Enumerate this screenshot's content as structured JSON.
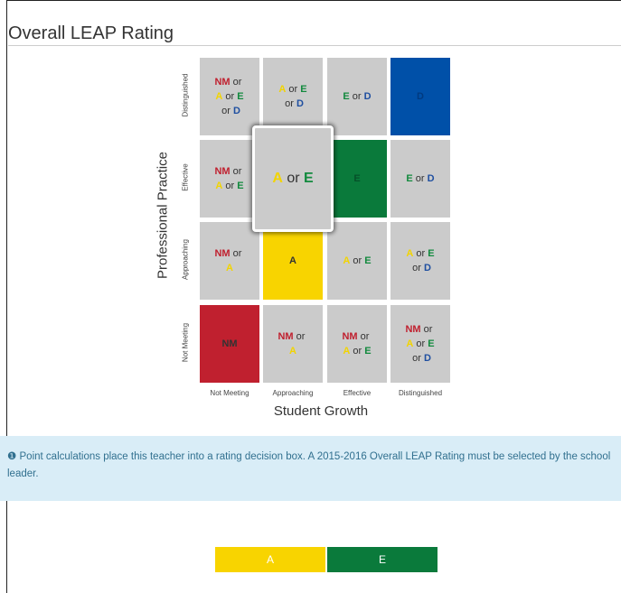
{
  "header": {
    "title": "Overall LEAP Rating"
  },
  "matrix": {
    "y_axis_label": "Professional Practice",
    "x_axis_label": "Student Growth",
    "row_labels": [
      "Distinguished",
      "Effective",
      "Approaching",
      "Not Meeting"
    ],
    "column_labels": [
      "Not Meeting",
      "Approaching",
      "Effective",
      "Distinguished"
    ],
    "letter_colors": {
      "NM": "#c0202f",
      "A": "#f2d400",
      "E": "#138a3e",
      "D": "#1f4fa0"
    },
    "fill_colors": {
      "NM": "#c0202f",
      "A": "#f8d400",
      "E": "#0a7a3b",
      "D": "#0050a8"
    },
    "fill_text_colors": {
      "NM": "#333333",
      "A": "#333333",
      "E": "#05512a",
      "D": "#003a80"
    },
    "highlighted_cell": [
      1,
      1
    ],
    "cells": [
      [
        {
          "lines": [
            [
              "NM",
              " or "
            ],
            [
              "A",
              " or ",
              "E"
            ],
            [
              " or ",
              "D"
            ]
          ]
        },
        {
          "lines": [
            [
              "A",
              " or ",
              "E"
            ],
            [
              " or ",
              "D"
            ]
          ]
        },
        {
          "lines": [
            [
              "E",
              " or ",
              "D"
            ]
          ]
        },
        {
          "fill": "D",
          "lines": [
            [
              "D"
            ]
          ]
        }
      ],
      [
        {
          "lines": [
            [
              "NM",
              " or "
            ],
            [
              "A",
              " or ",
              "E"
            ]
          ]
        },
        {
          "lines": [
            [
              "A",
              " or ",
              "E"
            ]
          ]
        },
        {
          "fill": "E",
          "lines": [
            [
              "E"
            ]
          ]
        },
        {
          "lines": [
            [
              "E",
              " or ",
              "D"
            ]
          ]
        }
      ],
      [
        {
          "lines": [
            [
              "NM",
              " or "
            ],
            [
              "A"
            ]
          ]
        },
        {
          "fill": "A",
          "lines": [
            [
              "A"
            ]
          ]
        },
        {
          "lines": [
            [
              "A",
              " or ",
              "E"
            ]
          ]
        },
        {
          "lines": [
            [
              "A",
              " or ",
              "E"
            ],
            [
              " or ",
              "D"
            ]
          ]
        }
      ],
      [
        {
          "fill": "NM",
          "lines": [
            [
              "NM"
            ]
          ]
        },
        {
          "lines": [
            [
              "NM",
              " or "
            ],
            [
              "A"
            ]
          ]
        },
        {
          "lines": [
            [
              "NM",
              " or "
            ],
            [
              "A",
              " or ",
              "E"
            ]
          ]
        },
        {
          "lines": [
            [
              "NM",
              " or "
            ],
            [
              "A",
              " or ",
              "E"
            ],
            [
              " or ",
              "D"
            ]
          ]
        }
      ]
    ]
  },
  "alert": {
    "icon": "❶",
    "text": "Point calculations place this teacher into a rating decision box. A 2015-2016 Overall LEAP Rating must be selected by the school leader."
  },
  "buttons": [
    {
      "label": "A",
      "color": "#f8d400"
    },
    {
      "label": "E",
      "color": "#0a7a3b"
    }
  ]
}
